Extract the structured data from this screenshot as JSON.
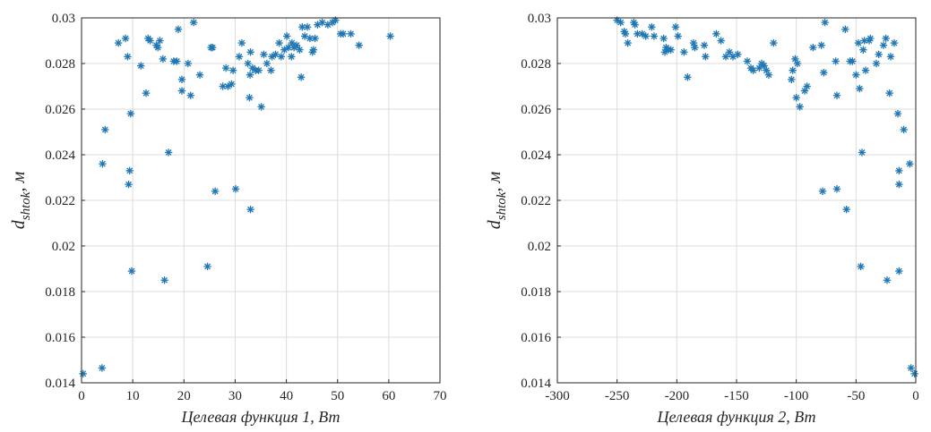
{
  "chart_data": [
    {
      "type": "scatter",
      "xlabel": "Целевая функция 1, Вт",
      "ylabel_main": "d",
      "ylabel_sub": "shtok",
      "ylabel_unit": ", м",
      "xlim": [
        0,
        70
      ],
      "ylim": [
        0.014,
        0.03
      ],
      "xticks": [
        "0",
        "10",
        "20",
        "30",
        "40",
        "50",
        "60",
        "70"
      ],
      "yticks": [
        "0.014",
        "0.016",
        "0.018",
        "0.02",
        "0.022",
        "0.024",
        "0.026",
        "0.028",
        "0.03"
      ],
      "grid": true,
      "marker": "asterisk",
      "color": "#1f77b4",
      "points": [
        [
          0.3,
          0.0144
        ],
        [
          4.1,
          0.0236
        ],
        [
          4.6,
          0.0251
        ],
        [
          4.0,
          0.01465
        ],
        [
          7.2,
          0.0289
        ],
        [
          8.6,
          0.0291
        ],
        [
          9.0,
          0.0283
        ],
        [
          9.2,
          0.0227
        ],
        [
          9.4,
          0.0233
        ],
        [
          9.6,
          0.0258
        ],
        [
          9.8,
          0.0189
        ],
        [
          11.6,
          0.0279
        ],
        [
          12.6,
          0.0267
        ],
        [
          13.0,
          0.0291
        ],
        [
          13.4,
          0.029
        ],
        [
          14.6,
          0.0288
        ],
        [
          14.9,
          0.0287
        ],
        [
          15.3,
          0.029
        ],
        [
          15.9,
          0.0282
        ],
        [
          16.2,
          0.0185
        ],
        [
          17.0,
          0.0241
        ],
        [
          18.0,
          0.0281
        ],
        [
          18.6,
          0.0281
        ],
        [
          18.9,
          0.0295
        ],
        [
          19.6,
          0.0273
        ],
        [
          19.6,
          0.0268
        ],
        [
          20.8,
          0.028
        ],
        [
          21.3,
          0.0266
        ],
        [
          21.9,
          0.0298
        ],
        [
          23.1,
          0.0275
        ],
        [
          24.6,
          0.0191
        ],
        [
          25.3,
          0.0287
        ],
        [
          25.6,
          0.0287
        ],
        [
          26.1,
          0.0224
        ],
        [
          27.6,
          0.027
        ],
        [
          28.2,
          0.0278
        ],
        [
          28.6,
          0.027
        ],
        [
          29.3,
          0.0271
        ],
        [
          29.6,
          0.0277
        ],
        [
          30.1,
          0.0225
        ],
        [
          30.8,
          0.0283
        ],
        [
          31.3,
          0.0289
        ],
        [
          32.5,
          0.028
        ],
        [
          32.8,
          0.0265
        ],
        [
          32.9,
          0.0275
        ],
        [
          33.0,
          0.0285
        ],
        [
          33.0,
          0.0216
        ],
        [
          33.4,
          0.0278
        ],
        [
          34.0,
          0.0277
        ],
        [
          34.6,
          0.0277
        ],
        [
          35.1,
          0.0261
        ],
        [
          35.6,
          0.0284
        ],
        [
          36.2,
          0.028
        ],
        [
          37.0,
          0.0277
        ],
        [
          37.2,
          0.0283
        ],
        [
          37.9,
          0.0284
        ],
        [
          38.6,
          0.0289
        ],
        [
          39.0,
          0.0283
        ],
        [
          39.6,
          0.0286
        ],
        [
          40.1,
          0.0292
        ],
        [
          40.4,
          0.0287
        ],
        [
          41.0,
          0.0283
        ],
        [
          41.1,
          0.0289
        ],
        [
          41.5,
          0.0287
        ],
        [
          42.0,
          0.0288
        ],
        [
          42.6,
          0.0286
        ],
        [
          42.9,
          0.0274
        ],
        [
          43.1,
          0.0296
        ],
        [
          43.6,
          0.0292
        ],
        [
          44.1,
          0.0296
        ],
        [
          44.6,
          0.0291
        ],
        [
          45.1,
          0.0285
        ],
        [
          45.3,
          0.0286
        ],
        [
          45.6,
          0.0291
        ],
        [
          46.1,
          0.0297
        ],
        [
          47.0,
          0.0298
        ],
        [
          48.1,
          0.0297
        ],
        [
          49.0,
          0.0298
        ],
        [
          49.6,
          0.0299
        ],
        [
          50.6,
          0.0293
        ],
        [
          51.1,
          0.0293
        ],
        [
          52.6,
          0.0293
        ],
        [
          54.2,
          0.0288
        ],
        [
          60.3,
          0.0292
        ]
      ]
    },
    {
      "type": "scatter",
      "xlabel": "Целевая функция 2, Вт",
      "ylabel_main": "d",
      "ylabel_sub": "shtok",
      "ylabel_unit": ", м",
      "xlim": [
        -300,
        0
      ],
      "ylim": [
        0.014,
        0.03
      ],
      "xticks": [
        "-300",
        "-250",
        "-200",
        "-150",
        "-100",
        "-50",
        "0"
      ],
      "yticks": [
        "0.014",
        "0.016",
        "0.018",
        "0.02",
        "0.022",
        "0.024",
        "0.026",
        "0.028",
        "0.03"
      ],
      "grid": true,
      "marker": "asterisk",
      "color": "#1f77b4",
      "points": [
        [
          -250,
          0.0299
        ],
        [
          -247,
          0.0298
        ],
        [
          -244,
          0.0294
        ],
        [
          -243,
          0.0293
        ],
        [
          -241,
          0.0289
        ],
        [
          -236,
          0.0298
        ],
        [
          -235,
          0.0297
        ],
        [
          -233,
          0.0293
        ],
        [
          -229,
          0.0293
        ],
        [
          -226,
          0.0292
        ],
        [
          -221,
          0.0296
        ],
        [
          -219,
          0.0292
        ],
        [
          -211,
          0.0291
        ],
        [
          -210,
          0.0285
        ],
        [
          -209,
          0.0287
        ],
        [
          -207,
          0.0286
        ],
        [
          -205,
          0.0286
        ],
        [
          -201,
          0.0296
        ],
        [
          -199,
          0.0292
        ],
        [
          -194,
          0.0285
        ],
        [
          -191,
          0.0274
        ],
        [
          -186,
          0.0289
        ],
        [
          -185,
          0.0287
        ],
        [
          -177,
          0.0288
        ],
        [
          -176,
          0.0283
        ],
        [
          -167,
          0.0293
        ],
        [
          -163,
          0.029
        ],
        [
          -159,
          0.0283
        ],
        [
          -156,
          0.0285
        ],
        [
          -153,
          0.0283
        ],
        [
          -149,
          0.0284
        ],
        [
          -141,
          0.0281
        ],
        [
          -138,
          0.0278
        ],
        [
          -136,
          0.0277
        ],
        [
          -131,
          0.0278
        ],
        [
          -129,
          0.028
        ],
        [
          -127,
          0.0279
        ],
        [
          -125,
          0.0277
        ],
        [
          -123,
          0.0275
        ],
        [
          -119,
          0.0289
        ],
        [
          -104,
          0.0273
        ],
        [
          -103,
          0.0277
        ],
        [
          -101,
          0.0282
        ],
        [
          -100,
          0.0265
        ],
        [
          -99,
          0.028
        ],
        [
          -97,
          0.0261
        ],
        [
          -93,
          0.0268
        ],
        [
          -91,
          0.027
        ],
        [
          -86,
          0.0287
        ],
        [
          -79,
          0.0288
        ],
        [
          -77,
          0.0276
        ],
        [
          -76,
          0.0298
        ],
        [
          -78,
          0.0224
        ],
        [
          -67,
          0.0281
        ],
        [
          -66,
          0.0266
        ],
        [
          -66,
          0.0225
        ],
        [
          -59,
          0.0295
        ],
        [
          -58,
          0.0216
        ],
        [
          -55,
          0.0281
        ],
        [
          -53,
          0.0281
        ],
        [
          -50,
          0.0275
        ],
        [
          -48,
          0.0289
        ],
        [
          -47,
          0.0269
        ],
        [
          -46,
          0.0191
        ],
        [
          -45,
          0.0241
        ],
        [
          -44,
          0.0286
        ],
        [
          -43,
          0.029
        ],
        [
          -42,
          0.0277
        ],
        [
          -39,
          0.029
        ],
        [
          -38,
          0.0291
        ],
        [
          -33,
          0.028
        ],
        [
          -31,
          0.0284
        ],
        [
          -27,
          0.0288
        ],
        [
          -25,
          0.0291
        ],
        [
          -24,
          0.0185
        ],
        [
          -22,
          0.0267
        ],
        [
          -21,
          0.0283
        ],
        [
          -18,
          0.0289
        ],
        [
          -15,
          0.0258
        ],
        [
          -14,
          0.0233
        ],
        [
          -14,
          0.0227
        ],
        [
          -14,
          0.0189
        ],
        [
          -10,
          0.0251
        ],
        [
          -5,
          0.0236
        ],
        [
          -4,
          0.01465
        ],
        [
          -1,
          0.0144
        ]
      ]
    }
  ]
}
